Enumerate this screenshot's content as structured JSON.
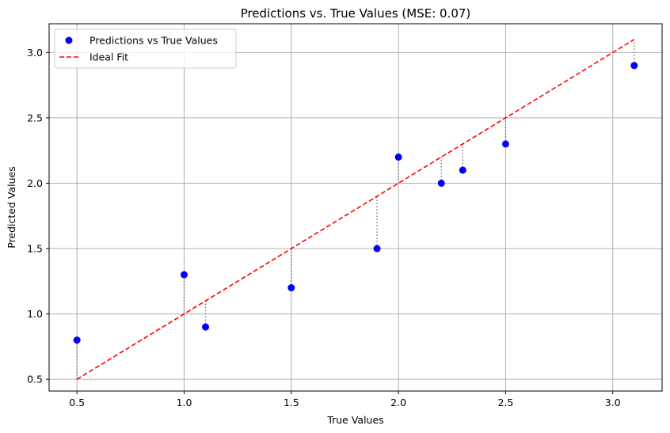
{
  "chart_data": {
    "type": "scatter",
    "title": "Predictions vs. True Values (MSE: 0.07)",
    "xlabel": "True Values",
    "ylabel": "Predicted Values",
    "xlim": [
      0.37,
      3.23
    ],
    "ylim": [
      0.41,
      3.22
    ],
    "xticks": [
      0.5,
      1.0,
      1.5,
      2.0,
      2.5,
      3.0
    ],
    "yticks": [
      0.5,
      1.0,
      1.5,
      2.0,
      2.5,
      3.0
    ],
    "xtick_labels": [
      "0.5",
      "1.0",
      "1.5",
      "2.0",
      "2.5",
      "3.0"
    ],
    "ytick_labels": [
      "0.5",
      "1.0",
      "1.5",
      "2.0",
      "2.5",
      "3.0"
    ],
    "grid": true,
    "legend_position": "top-left",
    "series": [
      {
        "name": "Predictions vs True Values",
        "kind": "scatter",
        "color": "#0000ff",
        "x": [
          0.5,
          1.0,
          1.1,
          1.5,
          1.9,
          2.0,
          2.2,
          2.3,
          2.5,
          3.1
        ],
        "y": [
          0.8,
          1.3,
          0.9,
          1.2,
          1.5,
          2.2,
          2.0,
          2.1,
          2.3,
          2.9
        ]
      },
      {
        "name": "Ideal Fit",
        "kind": "line",
        "style": "dashed",
        "color": "#ff0000",
        "x": [
          0.5,
          3.1
        ],
        "y": [
          0.5,
          3.1
        ]
      }
    ],
    "residual_lines": {
      "color": "#808080",
      "style": "dotted"
    }
  }
}
